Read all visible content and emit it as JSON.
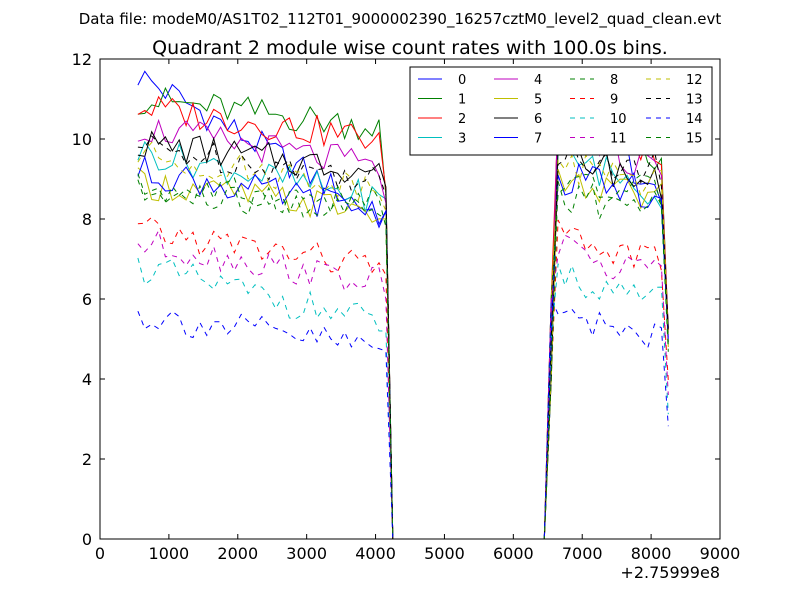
{
  "header": {
    "data_file_label": "Data file: modeM0/AS1T02_112T01_9000002390_16257cztM0_level2_quad_clean.evt"
  },
  "chart_data": {
    "type": "line",
    "title": "Quadrant 2 module wise count rates with 100.0s bins.",
    "xlabel": "",
    "ylabel": "",
    "x_offset_label": "+2.75999e8",
    "xlim": [
      0,
      9000
    ],
    "ylim": [
      0,
      12
    ],
    "x_ticks": [
      0,
      1000,
      2000,
      3000,
      4000,
      5000,
      6000,
      7000,
      8000,
      9000
    ],
    "y_ticks": [
      0,
      2,
      4,
      6,
      8,
      10,
      12
    ],
    "x": [
      550,
      650,
      750,
      850,
      950,
      1050,
      1150,
      1250,
      1350,
      1450,
      1550,
      1650,
      1750,
      1850,
      1950,
      2050,
      2150,
      2250,
      2350,
      2450,
      2550,
      2650,
      2750,
      2850,
      2950,
      3050,
      3150,
      3250,
      3350,
      3450,
      3550,
      3650,
      3750,
      3850,
      3950,
      4050,
      4150,
      4250,
      4350,
      4450,
      4550,
      4650,
      4750,
      4850,
      4950,
      5050,
      5150,
      5250,
      5350,
      5450,
      5550,
      5650,
      5750,
      5850,
      5950,
      6050,
      6150,
      6250,
      6350,
      6450,
      6550,
      6650,
      6750,
      6850,
      6950,
      7050,
      7150,
      7250,
      7350,
      7450,
      7550,
      7650,
      7750,
      7850,
      7950,
      8050,
      8150,
      8250
    ],
    "legend": {
      "location": "upper-right",
      "ncol": 4
    },
    "series": [
      {
        "name": "0",
        "color": "#0000ff",
        "style": "solid",
        "base": [
          11.6,
          8.1
        ],
        "end": 8.2,
        "base2": [
          11.2,
          8.5
        ]
      },
      {
        "name": "1",
        "color": "#008000",
        "style": "solid",
        "base": [
          11.0,
          10.3
        ],
        "end": 8.6,
        "base2": [
          10.7,
          9.3
        ]
      },
      {
        "name": "2",
        "color": "#ff0000",
        "style": "solid",
        "base": [
          10.8,
          10.0
        ],
        "end": 8.7,
        "base2": [
          10.8,
          9.5
        ]
      },
      {
        "name": "3",
        "color": "#00bfbf",
        "style": "solid",
        "base": [
          9.7,
          8.5
        ],
        "end": 8.5,
        "base2": [
          9.6,
          8.6
        ]
      },
      {
        "name": "4",
        "color": "#bf00bf",
        "style": "solid",
        "base": [
          10.3,
          9.3
        ],
        "end": 8.4,
        "base2": [
          10.6,
          9.0
        ]
      },
      {
        "name": "5",
        "color": "#bfbf00",
        "style": "solid",
        "base": [
          8.9,
          8.2
        ],
        "end": 8.0,
        "base2": [
          8.9,
          8.4
        ]
      },
      {
        "name": "6",
        "color": "#000000",
        "style": "solid",
        "base": [
          9.9,
          9.2
        ],
        "end": 8.8,
        "base2": [
          9.8,
          8.7
        ]
      },
      {
        "name": "7",
        "color": "#0000ff",
        "style": "solid",
        "base": [
          9.2,
          8.2
        ],
        "end": 8.2,
        "base2": [
          9.0,
          8.6
        ]
      },
      {
        "name": "8",
        "color": "#008000",
        "style": "dashed",
        "base": [
          8.8,
          8.4
        ],
        "end": 7.8,
        "base2": [
          8.9,
          8.6
        ]
      },
      {
        "name": "9",
        "color": "#ff0000",
        "style": "dashed",
        "base": [
          7.7,
          6.8
        ],
        "end": 6.6,
        "base2": [
          7.6,
          6.9
        ]
      },
      {
        "name": "10",
        "color": "#00bfbf",
        "style": "dashed",
        "base": [
          6.8,
          5.4
        ],
        "end": 5.2,
        "base2": [
          6.6,
          5.9
        ]
      },
      {
        "name": "11",
        "color": "#bf00bf",
        "style": "dashed",
        "base": [
          7.4,
          6.4
        ],
        "end": 6.0,
        "base2": [
          7.2,
          6.6
        ]
      },
      {
        "name": "12",
        "color": "#bfbf00",
        "style": "dashed",
        "base": [
          9.6,
          8.8
        ],
        "end": 8.2,
        "base2": [
          9.4,
          8.8
        ]
      },
      {
        "name": "13",
        "color": "#000000",
        "style": "dashed",
        "base": [
          9.8,
          9.0
        ],
        "end": 8.6,
        "base2": [
          9.6,
          9.2
        ]
      },
      {
        "name": "14",
        "color": "#0000ff",
        "style": "dashed",
        "base": [
          5.6,
          4.8
        ],
        "end": 4.7,
        "base2": [
          5.6,
          5.0
        ]
      },
      {
        "name": "15",
        "color": "#008000",
        "style": "dashed",
        "base": [
          8.6,
          8.2
        ],
        "end": 8.0,
        "base2": [
          8.5,
          8.3
        ]
      }
    ]
  }
}
